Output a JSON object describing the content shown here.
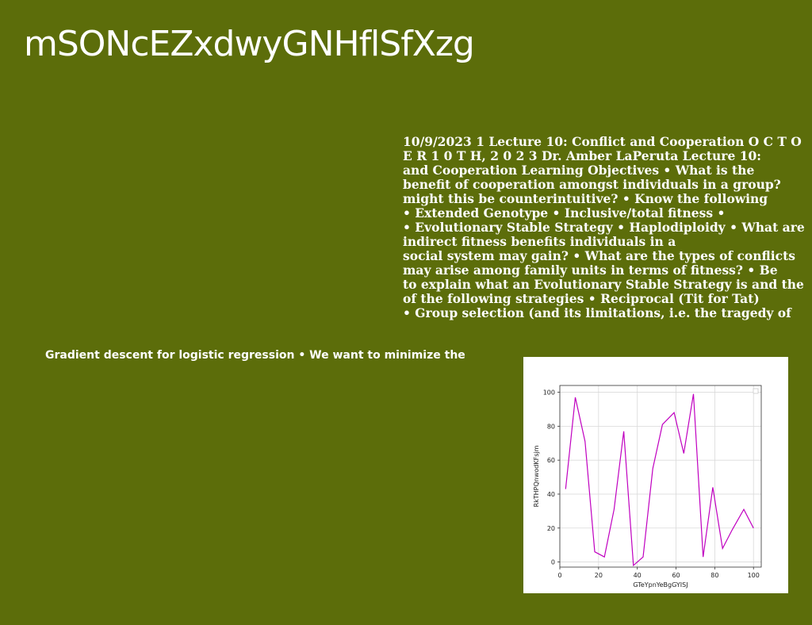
{
  "slide": {
    "title": "mSONcEZxdwyGNHflSfXzg",
    "body_lines": [
      "10/9/2023 1 Lecture 10: Conflict and Cooperation O C T O",
      "E R 1 0 T H, 2 0 2 3 Dr. Amber LaPeruta Lecture 10:",
      "and Cooperation Learning Objectives • What is the",
      "benefit of cooperation amongst individuals in a group?",
      "might this be counterintuitive? • Know the following",
      "• Extended Genotype • Inclusive/total fitness •",
      "• Evolutionary Stable Strategy • Haplodiploidy • What are",
      "indirect fitness benefits individuals in a",
      "social system may gain? • What are the types of conflicts",
      "may arise among family units in terms of fitness? • Be",
      "to explain what an Evolutionary Stable Strategy is and the",
      "of the following strategies • Reciprocal (Tit for Tat)",
      "• Group selection (and its limitations, i.e. the tragedy of"
    ],
    "subtitle": "Gradient descent for logistic regression • We want to minimize the"
  },
  "chart_data": {
    "type": "line",
    "title": "",
    "xlabel": "GTeYpnYeBgGYISJ",
    "ylabel": "RkTHPQnwodKFsjm",
    "xlim": [
      0,
      104
    ],
    "ylim": [
      -3,
      104
    ],
    "xticks": [
      0,
      20,
      40,
      60,
      80,
      100
    ],
    "yticks": [
      0,
      20,
      40,
      60,
      80,
      100
    ],
    "grid": true,
    "legend": "top-right",
    "line_color": "#c000c0",
    "series": [
      {
        "name": "",
        "x": [
          3,
          8,
          13,
          18,
          23,
          28,
          33,
          38,
          43,
          48,
          53,
          59,
          64,
          69,
          74,
          79,
          84,
          89,
          95,
          100
        ],
        "y": [
          43,
          97,
          71,
          6,
          3,
          31,
          77,
          -2,
          3,
          55,
          81,
          88,
          64,
          99,
          3,
          44,
          8,
          19,
          31,
          20
        ]
      }
    ]
  }
}
